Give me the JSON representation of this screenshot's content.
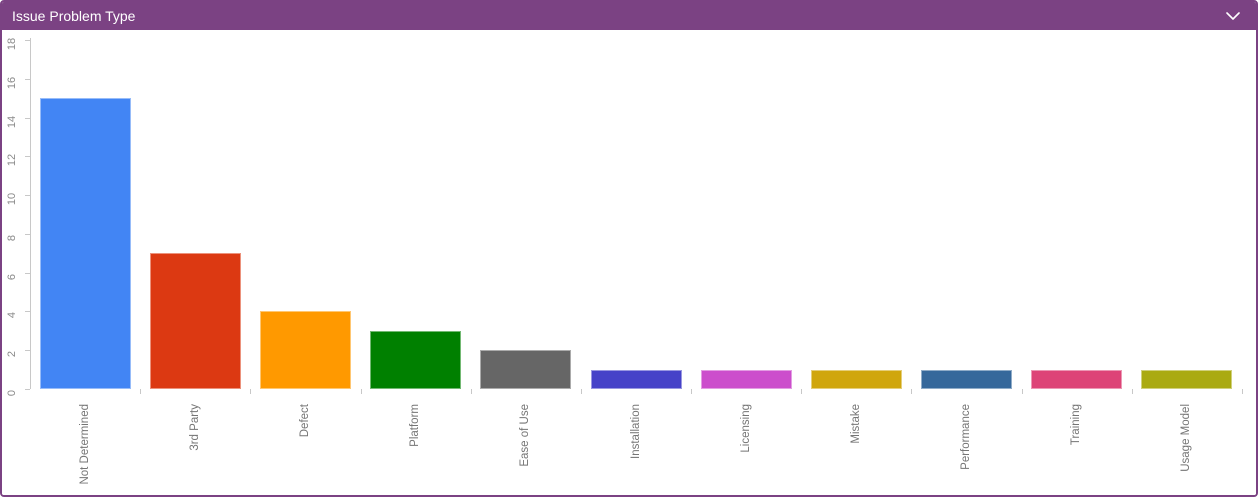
{
  "header": {
    "title": "Issue Problem Type",
    "collapse_icon": "chevron-down",
    "background_color": "#7B4283",
    "text_color": "#FFFFFF"
  },
  "colors": {
    "border": "#7B4283",
    "plot_background": "#FFFFFF",
    "axis": "#C8C8C8",
    "y_tick_label": "#8A8A8A",
    "category_label": "#757575"
  },
  "chart_data": {
    "type": "bar",
    "title": "Issue Problem Type",
    "categories": [
      "Not Determined",
      "3rd Party",
      "Defect",
      "Platform",
      "Ease of Use",
      "Installation",
      "Licensing",
      "Mistake",
      "Performance",
      "Training",
      "Usage Model"
    ],
    "values": [
      15,
      7,
      4,
      3,
      2,
      1,
      1,
      1,
      1,
      1,
      1
    ],
    "bar_colors": [
      "#4285F4",
      "#DC3912",
      "#FF9900",
      "#008000",
      "#666666",
      "#4642C8",
      "#CC4ECC",
      "#D0A60D",
      "#36689B",
      "#DD4477",
      "#AAAA11"
    ],
    "xlabel": "",
    "ylabel": "",
    "ylim": [
      0,
      18
    ],
    "yticks": [
      0,
      2,
      4,
      6,
      8,
      10,
      12,
      14,
      16,
      18
    ],
    "grid": false,
    "legend": "none",
    "x_label_rotation": -90,
    "y_label_rotation": -90
  }
}
